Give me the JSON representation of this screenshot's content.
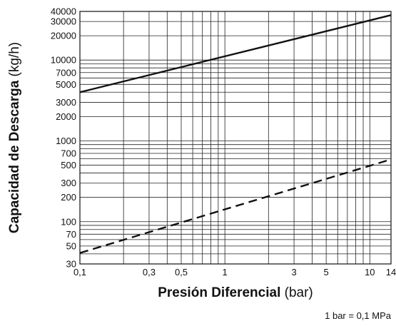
{
  "chart_data": {
    "type": "line",
    "x_scale": "log",
    "y_scale": "log",
    "xlabel_bold": "Presión Diferencial",
    "xlabel_rest": " (bar)",
    "ylabel_bold": "Capacidad de Descarga",
    "ylabel_rest": " (kg/h)",
    "note": "1 bar = 0,1 MPa",
    "xlim": [
      0.1,
      14
    ],
    "ylim": [
      30,
      40000
    ],
    "x_ticks": [
      {
        "value": 0.1,
        "label": "0,1"
      },
      {
        "value": 0.3,
        "label": "0,3"
      },
      {
        "value": 0.5,
        "label": "0,5"
      },
      {
        "value": 1,
        "label": "1"
      },
      {
        "value": 3,
        "label": "3"
      },
      {
        "value": 5,
        "label": "5"
      },
      {
        "value": 10,
        "label": "10"
      },
      {
        "value": 14,
        "label": "14"
      }
    ],
    "y_ticks": [
      {
        "value": 30,
        "label": "30"
      },
      {
        "value": 50,
        "label": "50"
      },
      {
        "value": 70,
        "label": "70"
      },
      {
        "value": 100,
        "label": "100"
      },
      {
        "value": 200,
        "label": "200"
      },
      {
        "value": 300,
        "label": "300"
      },
      {
        "value": 500,
        "label": "500"
      },
      {
        "value": 700,
        "label": "700"
      },
      {
        "value": 1000,
        "label": "1000"
      },
      {
        "value": 2000,
        "label": "2000"
      },
      {
        "value": 3000,
        "label": "3000"
      },
      {
        "value": 5000,
        "label": "5000"
      },
      {
        "value": 7000,
        "label": "7000"
      },
      {
        "value": 10000,
        "label": "10000"
      },
      {
        "value": 20000,
        "label": "20000"
      },
      {
        "value": 30000,
        "label": "30000"
      },
      {
        "value": 40000,
        "label": "40000"
      }
    ],
    "x_gridlines": [
      0.1,
      0.2,
      0.3,
      0.4,
      0.5,
      0.6,
      0.7,
      0.8,
      0.9,
      1,
      2,
      3,
      4,
      5,
      6,
      7,
      8,
      9,
      10,
      14
    ],
    "y_gridlines": [
      30,
      40,
      50,
      60,
      70,
      80,
      90,
      100,
      200,
      300,
      400,
      500,
      600,
      700,
      800,
      900,
      1000,
      2000,
      3000,
      4000,
      5000,
      6000,
      7000,
      8000,
      9000,
      10000,
      20000,
      30000,
      40000
    ],
    "grid": true,
    "legend": "none",
    "series": [
      {
        "style": "solid",
        "color": "#111111",
        "points": [
          {
            "x": 0.1,
            "y": 4000
          },
          {
            "x": 14,
            "y": 36000
          }
        ]
      },
      {
        "style": "dashed",
        "color": "#111111",
        "points": [
          {
            "x": 0.1,
            "y": 41
          },
          {
            "x": 14,
            "y": 590
          }
        ]
      }
    ]
  }
}
